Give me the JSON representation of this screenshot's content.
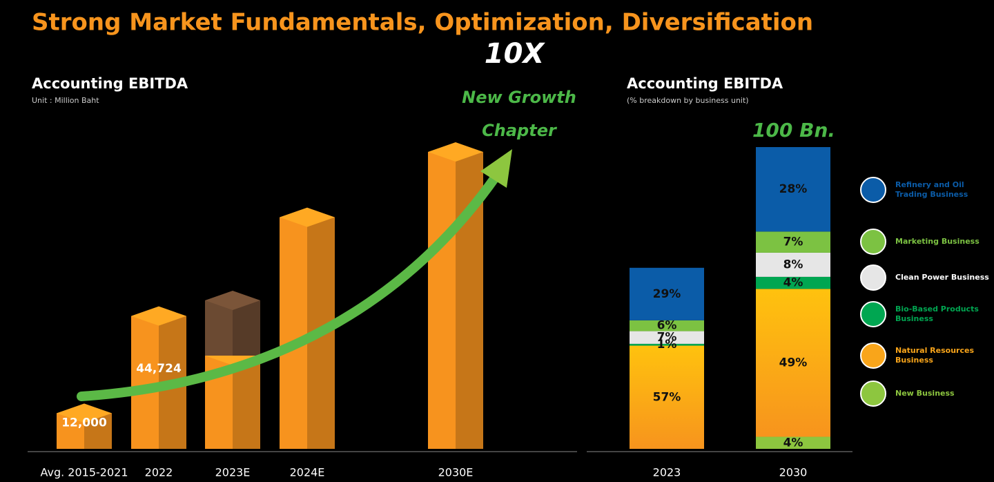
{
  "title": "Strong Market Fundamentals, Optimization, Diversification",
  "chart_data": [
    {
      "type": "bar3d",
      "title": "Accounting EBITDA",
      "subtitle": "Unit : Million Baht",
      "annotations": [
        "10X",
        "New Growth",
        "Chapter"
      ],
      "categories": [
        "Avg. 2015-2021",
        "2022",
        "2023E",
        "2024E",
        "2030E"
      ],
      "series": [
        {
          "color": "#f7931e",
          "values": [
            12000,
            44724,
            31400,
            78000,
            100000
          ],
          "value_labels": [
            "12,000",
            "44,724",
            null,
            null,
            null
          ]
        },
        {
          "color": "#6b4a32",
          "values": [
            null,
            null,
            18600,
            null,
            null
          ]
        }
      ]
    },
    {
      "type": "stacked100",
      "title": "Accounting EBITDA",
      "subtitle": "(% breakdown by business unit)",
      "annotations": [
        "100 Bn."
      ],
      "categories": [
        "2023",
        "2030"
      ],
      "totals": [
        60,
        100
      ],
      "series": [
        {
          "name": "New Business",
          "color": "#8dc63f",
          "values": [
            null,
            4
          ],
          "value_labels": [
            null,
            "4%"
          ]
        },
        {
          "name": "Natural Resources Business",
          "color": "#f9a51a",
          "values": [
            57,
            49
          ],
          "value_labels": [
            "57%",
            "49%"
          ]
        },
        {
          "name": "Bio-Based Products Business",
          "color": "#00a651",
          "values": [
            1,
            4
          ],
          "value_labels": [
            "1%",
            "4%"
          ]
        },
        {
          "name": "Clean Power Business",
          "color": "#e6e6e6",
          "values": [
            7,
            8
          ],
          "value_labels": [
            "7%",
            "8%"
          ]
        },
        {
          "name": "Marketing Business",
          "color": "#7cc242",
          "values": [
            6,
            7
          ],
          "value_labels": [
            "6%",
            "7%"
          ]
        },
        {
          "name": "Refinery and Oil Trading Business",
          "color": "#0b5ca8",
          "values": [
            29,
            28
          ],
          "value_labels": [
            "29%",
            "28%"
          ]
        }
      ]
    }
  ]
}
